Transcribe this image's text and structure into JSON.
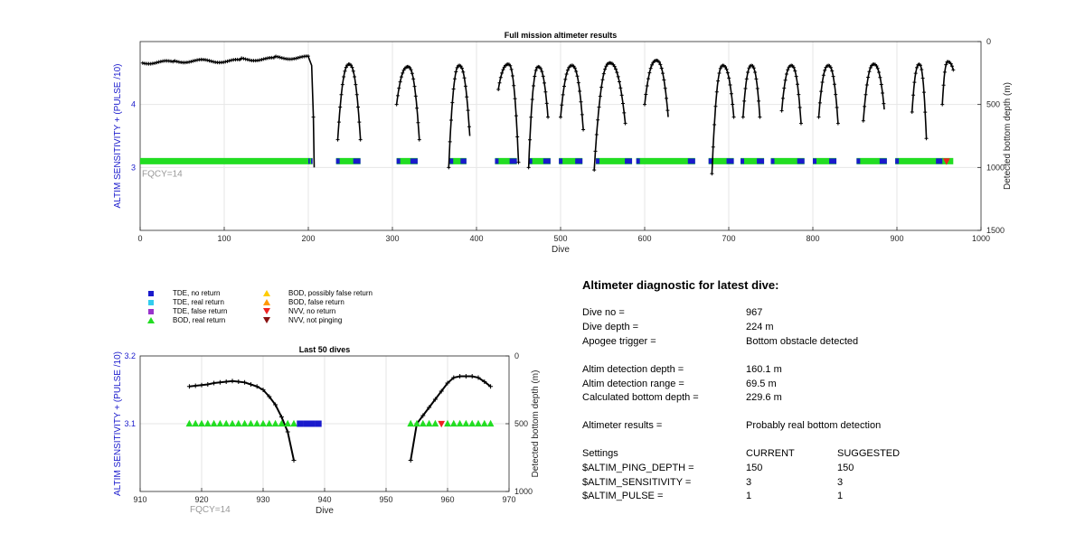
{
  "chart_data": [
    {
      "type": "scatter",
      "title": "Full mission altimeter results",
      "xlabel": "Dive",
      "ylabel_left": "ALTIM SENSITIVITY + (PULSE /10)",
      "ylabel_right": "Detected bottom depth (m)",
      "xlim": [
        0,
        1000
      ],
      "ylim_left": [
        2,
        5
      ],
      "ylim_right": [
        1500,
        0
      ],
      "x_ticks": [
        "0",
        "100",
        "200",
        "300",
        "400",
        "500",
        "600",
        "700",
        "800",
        "900",
        "1000"
      ],
      "y_ticks_left": [
        "3",
        "4"
      ],
      "y_ticks_right": [
        "0",
        "500",
        "1000",
        "1500"
      ],
      "annotation": "FQCY=14",
      "grid": true,
      "bottom_depth_dive_ranges": [
        [
          0,
          205
        ],
        [
          235,
          262
        ],
        [
          305,
          332
        ],
        [
          367,
          390
        ],
        [
          426,
          450
        ],
        [
          462,
          485
        ],
        [
          500,
          526
        ],
        [
          540,
          576
        ],
        [
          600,
          628
        ],
        [
          680,
          705
        ],
        [
          715,
          735
        ],
        [
          750,
          786
        ],
        [
          805,
          830
        ],
        [
          858,
          885
        ],
        [
          920,
          935
        ],
        [
          955,
          967
        ]
      ],
      "sensitivity_runs": [
        {
          "from": 0,
          "to": 200,
          "type": "BOD, real return"
        },
        {
          "from": 200,
          "to": 205,
          "type": "TDE, no return"
        },
        {
          "from": 233,
          "to": 262,
          "type": "TDE, no return"
        },
        {
          "from": 305,
          "to": 330,
          "type": "TDE, no return"
        },
        {
          "from": 368,
          "to": 388,
          "type": "TDE, no return"
        },
        {
          "from": 422,
          "to": 448,
          "type": "TDE, no return"
        },
        {
          "from": 462,
          "to": 488,
          "type": "TDE, no return"
        },
        {
          "from": 498,
          "to": 526,
          "type": "TDE, no return"
        },
        {
          "from": 542,
          "to": 585,
          "type": "TDE, no return"
        },
        {
          "from": 590,
          "to": 660,
          "type": "TDE, no return"
        },
        {
          "from": 676,
          "to": 706,
          "type": "TDE, no return"
        },
        {
          "from": 714,
          "to": 742,
          "type": "TDE, no return"
        },
        {
          "from": 750,
          "to": 790,
          "type": "TDE, no return"
        },
        {
          "from": 800,
          "to": 828,
          "type": "TDE, no return"
        },
        {
          "from": 852,
          "to": 888,
          "type": "TDE, no return"
        },
        {
          "from": 898,
          "to": 955,
          "type": "TDE, no return"
        },
        {
          "from": 954,
          "to": 967,
          "type": "BOD, real return"
        }
      ],
      "sensitivity_value": 3.1
    },
    {
      "type": "scatter",
      "title": "Last 50 dives",
      "xlabel": "Dive",
      "ylabel_left": "ALTIM SENSITIVITY + (PULSE /10)",
      "ylabel_right": "Detected bottom depth (m)",
      "xlim": [
        910,
        970
      ],
      "ylim_left": [
        3,
        3.2
      ],
      "ylim_right": [
        1000,
        0
      ],
      "x_ticks": [
        "910",
        "920",
        "930",
        "940",
        "950",
        "960",
        "970"
      ],
      "y_ticks_left": [
        "3.1",
        "3.2"
      ],
      "y_ticks_right": [
        "0",
        "500",
        "1000"
      ],
      "annotation": "FQCY=14",
      "grid": true,
      "bottom_depth": {
        "x": [
          918,
          919,
          920,
          921,
          922,
          923,
          924,
          925,
          926,
          927,
          928,
          929,
          930,
          931,
          932,
          933,
          934,
          935,
          954,
          955,
          956,
          957,
          958,
          959,
          960,
          961,
          962,
          963,
          964,
          965,
          966,
          967
        ],
        "y": [
          225,
          220,
          215,
          210,
          200,
          195,
          190,
          185,
          190,
          195,
          210,
          225,
          250,
          300,
          360,
          450,
          560,
          770,
          770,
          500,
          440,
          380,
          320,
          260,
          200,
          160,
          150,
          150,
          150,
          160,
          190,
          225
        ]
      },
      "sensitivity": {
        "x": [
          918,
          919,
          920,
          921,
          922,
          923,
          924,
          925,
          926,
          927,
          928,
          929,
          930,
          931,
          932,
          933,
          934,
          935,
          936,
          937,
          938,
          939,
          954,
          955,
          956,
          957,
          958,
          959,
          960,
          961,
          962,
          963,
          964,
          965,
          966,
          967
        ],
        "y": [
          3.1,
          3.1,
          3.1,
          3.1,
          3.1,
          3.1,
          3.1,
          3.1,
          3.1,
          3.1,
          3.1,
          3.1,
          3.1,
          3.1,
          3.1,
          3.1,
          3.1,
          3.1,
          3.1,
          3.1,
          3.1,
          3.1,
          3.1,
          3.1,
          3.1,
          3.1,
          3.1,
          3.1,
          3.1,
          3.1,
          3.1,
          3.1,
          3.1,
          3.1,
          3.1,
          3.1
        ],
        "type": [
          "BOD, real return",
          "BOD, real return",
          "BOD, real return",
          "BOD, real return",
          "BOD, real return",
          "BOD, real return",
          "BOD, real return",
          "BOD, real return",
          "BOD, real return",
          "BOD, real return",
          "BOD, real return",
          "BOD, real return",
          "BOD, real return",
          "BOD, real return",
          "BOD, real return",
          "BOD, real return",
          "BOD, real return",
          "BOD, real return",
          "TDE, no return",
          "TDE, no return",
          "TDE, no return",
          "TDE, no return",
          "BOD, real return",
          "BOD, real return",
          "BOD, real return",
          "BOD, real return",
          "BOD, real return",
          "NVV, no return",
          "BOD, real return",
          "BOD, real return",
          "BOD, real return",
          "BOD, real return",
          "BOD, real return",
          "BOD, real return",
          "BOD, real return",
          "BOD, real return"
        ]
      }
    }
  ],
  "legend": [
    {
      "label": "TDE, no return",
      "shape": "square",
      "color": "#1a1acc"
    },
    {
      "label": "TDE, real return",
      "shape": "square",
      "color": "#33ccee"
    },
    {
      "label": "TDE, false return",
      "shape": "square",
      "color": "#9933cc"
    },
    {
      "label": "BOD, real return",
      "shape": "triangle-up",
      "color": "#22dd22"
    },
    {
      "label": "BOD, possibly false return",
      "shape": "triangle-up",
      "color": "#ffcc00"
    },
    {
      "label": "BOD, false return",
      "shape": "triangle-up",
      "color": "#ff9900"
    },
    {
      "label": "NVV, no return",
      "shape": "triangle-down",
      "color": "#ee2222"
    },
    {
      "label": "NVV, not pinging",
      "shape": "triangle-down",
      "color": "#881111"
    }
  ],
  "colors": {
    "axis_left": "#1a1acc",
    "annotation": "#999999",
    "depth_line": "#000000"
  },
  "diagnostic": {
    "title": "Altimeter diagnostic for latest dive:",
    "rows": [
      {
        "label": "Dive no =",
        "value": "967"
      },
      {
        "label": "Dive depth =",
        "value": "224 m"
      },
      {
        "label": "Apogee trigger =",
        "value": "Bottom obstacle detected"
      },
      {
        "label": "Altim detection depth =",
        "value": "160.1 m"
      },
      {
        "label": "Altim detection range =",
        "value": "69.5 m"
      },
      {
        "label": "Calculated bottom depth =",
        "value": "229.6 m"
      },
      {
        "label": "Altimeter results =",
        "value": "Probably real bottom detection"
      }
    ],
    "settings_header": {
      "label": "Settings",
      "current": "CURRENT",
      "suggested": "SUGGESTED"
    },
    "settings": [
      {
        "label": "$ALTIM_PING_DEPTH =",
        "current": "150",
        "suggested": "150"
      },
      {
        "label": "$ALTIM_SENSITIVITY =",
        "current": "3",
        "suggested": "3"
      },
      {
        "label": "$ALTIM_PULSE =",
        "current": "1",
        "suggested": "1"
      }
    ]
  }
}
